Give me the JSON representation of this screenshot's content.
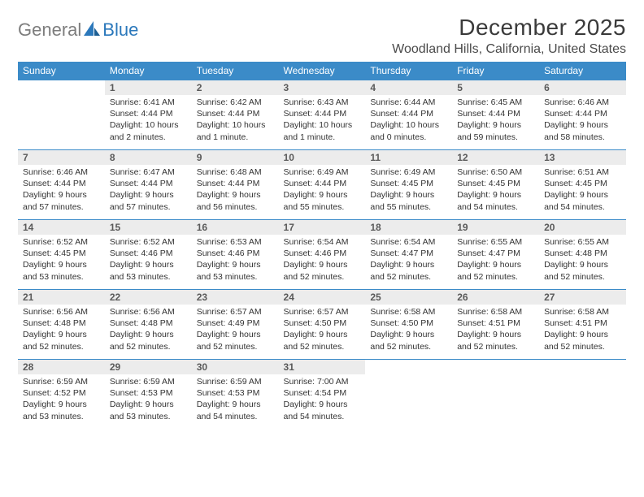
{
  "brand": {
    "part1": "General",
    "part2": "Blue"
  },
  "title": "December 2025",
  "location": "Woodland Hills, California, United States",
  "colors": {
    "header_bg": "#3b8bc8",
    "header_text": "#ffffff",
    "daynum_bg": "#ececec",
    "daynum_text": "#5a5a5a",
    "body_text": "#333333",
    "rule": "#3b8bc8",
    "logo_gray": "#7d7d7d",
    "logo_blue": "#2b78bb",
    "page_bg": "#ffffff"
  },
  "typography": {
    "title_fontsize": 28,
    "location_fontsize": 16,
    "header_fontsize": 12,
    "daynum_fontsize": 12,
    "body_fontsize": 10.5,
    "logo_fontsize": 22
  },
  "weekdays": [
    "Sunday",
    "Monday",
    "Tuesday",
    "Wednesday",
    "Thursday",
    "Friday",
    "Saturday"
  ],
  "weeks": [
    [
      null,
      {
        "n": "1",
        "sunrise": "Sunrise: 6:41 AM",
        "sunset": "Sunset: 4:44 PM",
        "day1": "Daylight: 10 hours",
        "day2": "and 2 minutes."
      },
      {
        "n": "2",
        "sunrise": "Sunrise: 6:42 AM",
        "sunset": "Sunset: 4:44 PM",
        "day1": "Daylight: 10 hours",
        "day2": "and 1 minute."
      },
      {
        "n": "3",
        "sunrise": "Sunrise: 6:43 AM",
        "sunset": "Sunset: 4:44 PM",
        "day1": "Daylight: 10 hours",
        "day2": "and 1 minute."
      },
      {
        "n": "4",
        "sunrise": "Sunrise: 6:44 AM",
        "sunset": "Sunset: 4:44 PM",
        "day1": "Daylight: 10 hours",
        "day2": "and 0 minutes."
      },
      {
        "n": "5",
        "sunrise": "Sunrise: 6:45 AM",
        "sunset": "Sunset: 4:44 PM",
        "day1": "Daylight: 9 hours",
        "day2": "and 59 minutes."
      },
      {
        "n": "6",
        "sunrise": "Sunrise: 6:46 AM",
        "sunset": "Sunset: 4:44 PM",
        "day1": "Daylight: 9 hours",
        "day2": "and 58 minutes."
      }
    ],
    [
      {
        "n": "7",
        "sunrise": "Sunrise: 6:46 AM",
        "sunset": "Sunset: 4:44 PM",
        "day1": "Daylight: 9 hours",
        "day2": "and 57 minutes."
      },
      {
        "n": "8",
        "sunrise": "Sunrise: 6:47 AM",
        "sunset": "Sunset: 4:44 PM",
        "day1": "Daylight: 9 hours",
        "day2": "and 57 minutes."
      },
      {
        "n": "9",
        "sunrise": "Sunrise: 6:48 AM",
        "sunset": "Sunset: 4:44 PM",
        "day1": "Daylight: 9 hours",
        "day2": "and 56 minutes."
      },
      {
        "n": "10",
        "sunrise": "Sunrise: 6:49 AM",
        "sunset": "Sunset: 4:44 PM",
        "day1": "Daylight: 9 hours",
        "day2": "and 55 minutes."
      },
      {
        "n": "11",
        "sunrise": "Sunrise: 6:49 AM",
        "sunset": "Sunset: 4:45 PM",
        "day1": "Daylight: 9 hours",
        "day2": "and 55 minutes."
      },
      {
        "n": "12",
        "sunrise": "Sunrise: 6:50 AM",
        "sunset": "Sunset: 4:45 PM",
        "day1": "Daylight: 9 hours",
        "day2": "and 54 minutes."
      },
      {
        "n": "13",
        "sunrise": "Sunrise: 6:51 AM",
        "sunset": "Sunset: 4:45 PM",
        "day1": "Daylight: 9 hours",
        "day2": "and 54 minutes."
      }
    ],
    [
      {
        "n": "14",
        "sunrise": "Sunrise: 6:52 AM",
        "sunset": "Sunset: 4:45 PM",
        "day1": "Daylight: 9 hours",
        "day2": "and 53 minutes."
      },
      {
        "n": "15",
        "sunrise": "Sunrise: 6:52 AM",
        "sunset": "Sunset: 4:46 PM",
        "day1": "Daylight: 9 hours",
        "day2": "and 53 minutes."
      },
      {
        "n": "16",
        "sunrise": "Sunrise: 6:53 AM",
        "sunset": "Sunset: 4:46 PM",
        "day1": "Daylight: 9 hours",
        "day2": "and 53 minutes."
      },
      {
        "n": "17",
        "sunrise": "Sunrise: 6:54 AM",
        "sunset": "Sunset: 4:46 PM",
        "day1": "Daylight: 9 hours",
        "day2": "and 52 minutes."
      },
      {
        "n": "18",
        "sunrise": "Sunrise: 6:54 AM",
        "sunset": "Sunset: 4:47 PM",
        "day1": "Daylight: 9 hours",
        "day2": "and 52 minutes."
      },
      {
        "n": "19",
        "sunrise": "Sunrise: 6:55 AM",
        "sunset": "Sunset: 4:47 PM",
        "day1": "Daylight: 9 hours",
        "day2": "and 52 minutes."
      },
      {
        "n": "20",
        "sunrise": "Sunrise: 6:55 AM",
        "sunset": "Sunset: 4:48 PM",
        "day1": "Daylight: 9 hours",
        "day2": "and 52 minutes."
      }
    ],
    [
      {
        "n": "21",
        "sunrise": "Sunrise: 6:56 AM",
        "sunset": "Sunset: 4:48 PM",
        "day1": "Daylight: 9 hours",
        "day2": "and 52 minutes."
      },
      {
        "n": "22",
        "sunrise": "Sunrise: 6:56 AM",
        "sunset": "Sunset: 4:48 PM",
        "day1": "Daylight: 9 hours",
        "day2": "and 52 minutes."
      },
      {
        "n": "23",
        "sunrise": "Sunrise: 6:57 AM",
        "sunset": "Sunset: 4:49 PM",
        "day1": "Daylight: 9 hours",
        "day2": "and 52 minutes."
      },
      {
        "n": "24",
        "sunrise": "Sunrise: 6:57 AM",
        "sunset": "Sunset: 4:50 PM",
        "day1": "Daylight: 9 hours",
        "day2": "and 52 minutes."
      },
      {
        "n": "25",
        "sunrise": "Sunrise: 6:58 AM",
        "sunset": "Sunset: 4:50 PM",
        "day1": "Daylight: 9 hours",
        "day2": "and 52 minutes."
      },
      {
        "n": "26",
        "sunrise": "Sunrise: 6:58 AM",
        "sunset": "Sunset: 4:51 PM",
        "day1": "Daylight: 9 hours",
        "day2": "and 52 minutes."
      },
      {
        "n": "27",
        "sunrise": "Sunrise: 6:58 AM",
        "sunset": "Sunset: 4:51 PM",
        "day1": "Daylight: 9 hours",
        "day2": "and 52 minutes."
      }
    ],
    [
      {
        "n": "28",
        "sunrise": "Sunrise: 6:59 AM",
        "sunset": "Sunset: 4:52 PM",
        "day1": "Daylight: 9 hours",
        "day2": "and 53 minutes."
      },
      {
        "n": "29",
        "sunrise": "Sunrise: 6:59 AM",
        "sunset": "Sunset: 4:53 PM",
        "day1": "Daylight: 9 hours",
        "day2": "and 53 minutes."
      },
      {
        "n": "30",
        "sunrise": "Sunrise: 6:59 AM",
        "sunset": "Sunset: 4:53 PM",
        "day1": "Daylight: 9 hours",
        "day2": "and 54 minutes."
      },
      {
        "n": "31",
        "sunrise": "Sunrise: 7:00 AM",
        "sunset": "Sunset: 4:54 PM",
        "day1": "Daylight: 9 hours",
        "day2": "and 54 minutes."
      },
      null,
      null,
      null
    ]
  ]
}
